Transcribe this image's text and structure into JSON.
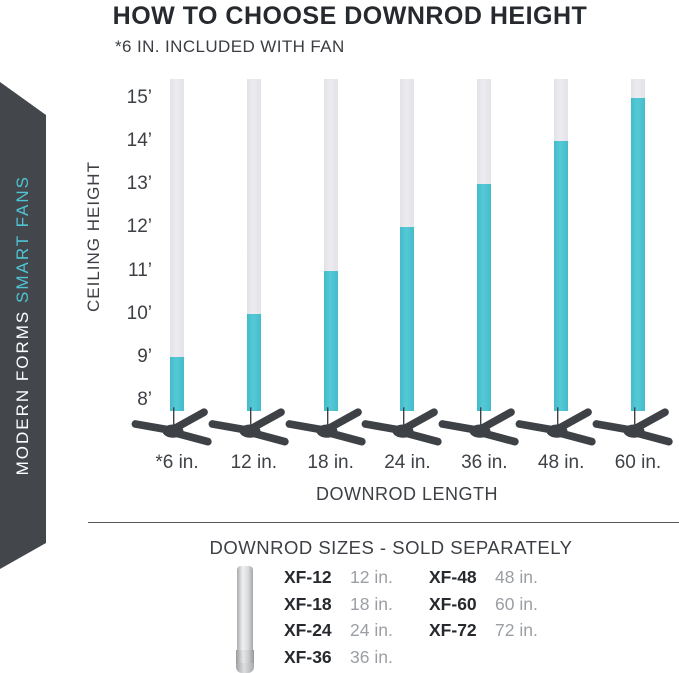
{
  "header": {
    "title": "HOW TO CHOOSE DOWNROD HEIGHT",
    "subtitle": "*6 IN. INCLUDED WITH FAN"
  },
  "ribbon": {
    "brand_primary": "MODERN FORMS ",
    "brand_accent": "SMART FANS"
  },
  "colors": {
    "teal": "#4CC3D1",
    "bar_track_gray": "#E8E8EC",
    "ribbon_dark": "#43474C",
    "fan_dark": "#3E4246",
    "text_dark": "#26292D",
    "text_gray": "#9B9EA3",
    "axis_text": "#3C3F44"
  },
  "chart_data": {
    "type": "bar",
    "title": "HOW TO CHOOSE DOWNROD HEIGHT",
    "xlabel": "DOWNROD LENGTH",
    "ylabel": "CEILING HEIGHT",
    "categories": [
      "*6 in.",
      "12 in.",
      "18 in.",
      "24 in.",
      "36 in.",
      "48 in.",
      "60 in."
    ],
    "values": [
      9,
      10,
      11,
      12,
      13,
      14,
      15
    ],
    "values_unit": "feet (teal fill top = recommended ceiling height for each downrod length)",
    "yticks": [
      "8’",
      "9’",
      "10’",
      "11’",
      "12’",
      "13’",
      "14’",
      "15’"
    ],
    "ylim": [
      8,
      15
    ],
    "grid": false,
    "legend": false
  },
  "sizes_section": {
    "heading": "DOWNROD SIZES - SOLD SEPARATELY",
    "columns": [
      {
        "rows": [
          {
            "model": "XF-12",
            "size": "12 in."
          },
          {
            "model": "XF-18",
            "size": "18 in."
          },
          {
            "model": "XF-24",
            "size": "24 in."
          },
          {
            "model": "XF-36",
            "size": "36 in."
          }
        ]
      },
      {
        "rows": [
          {
            "model": "XF-48",
            "size": "48 in."
          },
          {
            "model": "XF-60",
            "size": "60 in."
          },
          {
            "model": "XF-72",
            "size": "72 in."
          }
        ]
      }
    ]
  }
}
